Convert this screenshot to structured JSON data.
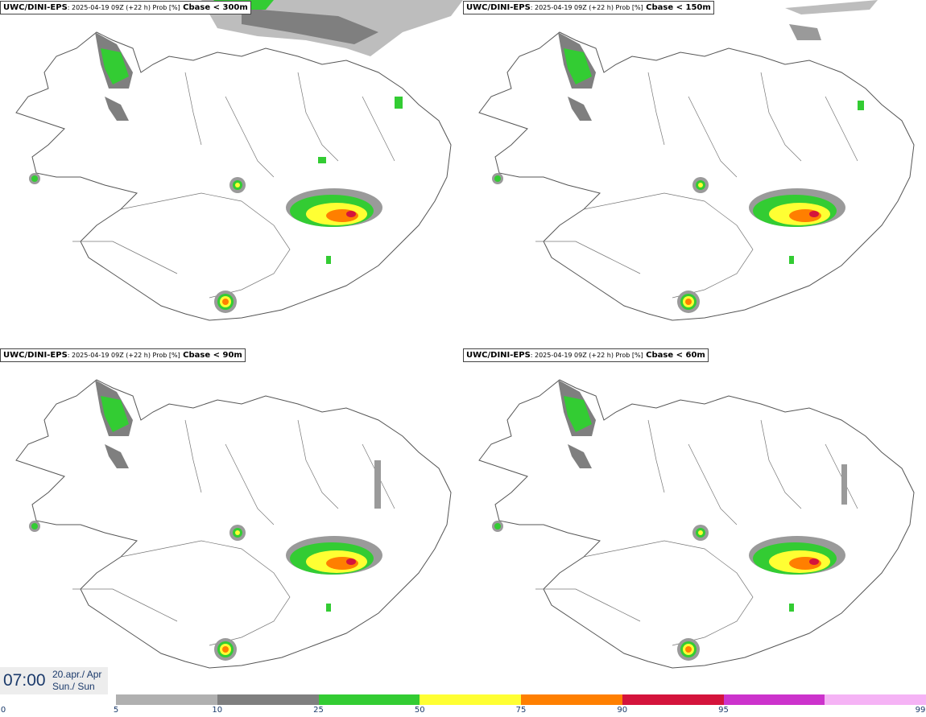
{
  "panels": [
    {
      "model": "UWC/DINI-EPS",
      "meta": ": 2025-04-19 09Z (+22 h) Prob [%]",
      "param": " Cbase < 300m"
    },
    {
      "model": "UWC/DINI-EPS",
      "meta": ": 2025-04-19 09Z (+22 h) Prob [%]",
      "param": " Cbase < 150m"
    },
    {
      "model": "UWC/DINI-EPS",
      "meta": ": 2025-04-19 09Z (+22 h) Prob [%]",
      "param": " Cbase < 90m"
    },
    {
      "model": "UWC/DINI-EPS",
      "meta": ": 2025-04-19 09Z (+22 h) Prob [%]",
      "param": " Cbase < 60m"
    }
  ],
  "time": {
    "clock": "07:00",
    "date": "20.apr./ Apr",
    "weekday": "Sun./ Sun"
  },
  "legend": {
    "ticks": [
      "0",
      "5",
      "10",
      "25",
      "50",
      "75",
      "90",
      "95",
      "99"
    ],
    "colors": [
      "#b0b0b0",
      "#7f7f7f",
      "#33cc33",
      "#ffff33",
      "#ff7f00",
      "#d4143c",
      "#cc33cc",
      "#f5b3f5"
    ]
  }
}
